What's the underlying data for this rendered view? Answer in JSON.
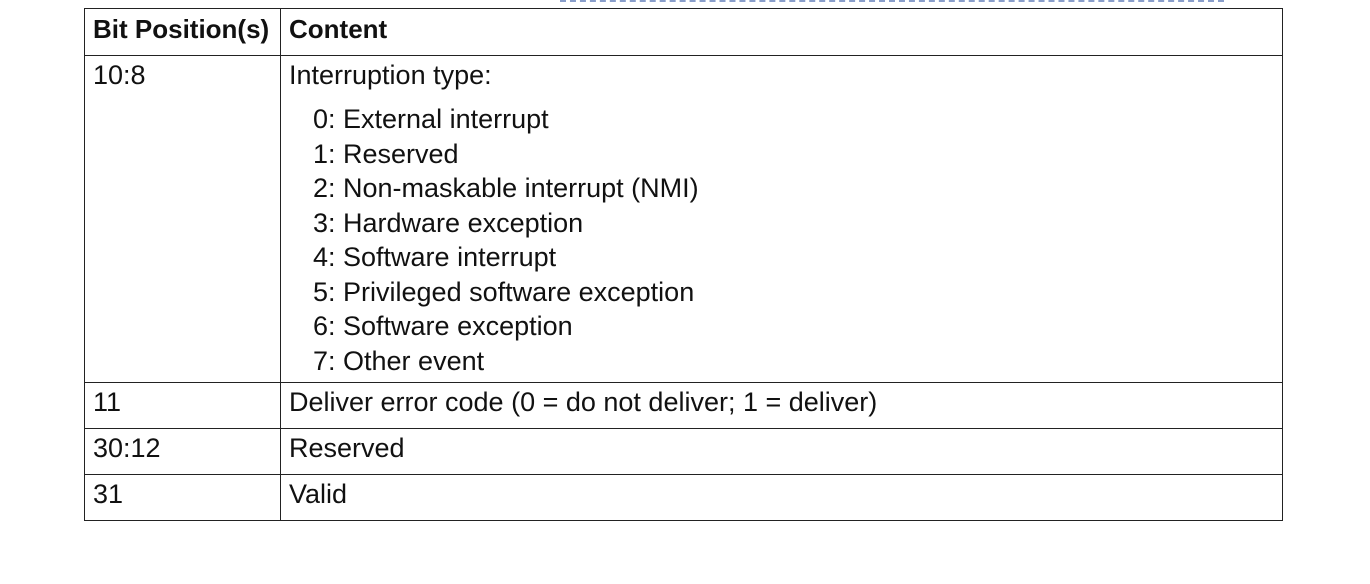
{
  "table": {
    "headers": [
      "Bit Position(s)",
      "Content"
    ],
    "rows": [
      {
        "bits": "10:8",
        "content": "Interruption type:",
        "list": [
          "0: External interrupt",
          "1: Reserved",
          "2: Non-maskable interrupt (NMI)",
          "3: Hardware exception",
          "4: Software interrupt",
          "5: Privileged software exception",
          "6: Software exception",
          "7: Other event"
        ]
      },
      {
        "bits": "11",
        "content": "Deliver error code (0 = do not deliver; 1 = deliver)"
      },
      {
        "bits": "30:12",
        "content": "Reserved"
      },
      {
        "bits": "31",
        "content": "Valid"
      }
    ]
  }
}
